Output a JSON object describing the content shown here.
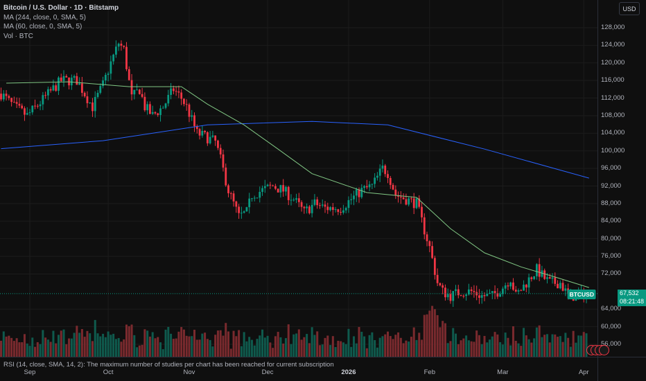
{
  "legend": {
    "title": "Bitcoin / U.S. Dollar · 1D · Bitstamp",
    "ma1": "MA (244, close, 0, SMA, 5)",
    "ma2": "MA (60, close, 0, SMA, 5)",
    "vol": "Vol · BTC"
  },
  "currency_button": "USD",
  "symbol_tag": "BTCUSD",
  "last_price": "67,532",
  "countdown": "08:21:48",
  "rsi_message": "RSI (14, close, SMA, 14, 2): The maximum number of studies per chart has been reached for current subscription",
  "colors": {
    "up": "#089981",
    "down": "#f23645",
    "ma244": "#2962ff",
    "ma60": "#81c784",
    "bg": "#0f0f0f"
  },
  "chart_data": {
    "type": "candlestick",
    "title": "Bitcoin / U.S. Dollar · 1D · Bitstamp",
    "price_ticks": [
      "128,000",
      "124,000",
      "120,000",
      "116,000",
      "112,000",
      "108,000",
      "104,000",
      "100,000",
      "96,000",
      "92,000",
      "88,000",
      "84,000",
      "80,000",
      "76,000",
      "72,000",
      "64,000",
      "60,000",
      "56,000"
    ],
    "price_tick_values": [
      128000,
      124000,
      120000,
      116000,
      112000,
      108000,
      104000,
      100000,
      96000,
      92000,
      88000,
      84000,
      80000,
      76000,
      72000,
      64000,
      60000,
      56000
    ],
    "date_ticks": [
      {
        "label": "Sep",
        "day": 0,
        "bold": false
      },
      {
        "label": "Oct",
        "day": 30,
        "bold": false
      },
      {
        "label": "Nov",
        "day": 61,
        "bold": false
      },
      {
        "label": "Dec",
        "day": 91,
        "bold": false
      },
      {
        "label": "2026",
        "day": 122,
        "bold": true
      },
      {
        "label": "Feb",
        "day": 153,
        "bold": false
      },
      {
        "label": "Mar",
        "day": 181,
        "bold": false
      },
      {
        "label": "Apr",
        "day": 212,
        "bold": false
      }
    ],
    "close_keypoints_day_price": [
      [
        -11,
        113000
      ],
      [
        -6,
        110000
      ],
      [
        -1,
        108000
      ],
      [
        4,
        111000
      ],
      [
        12,
        116000
      ],
      [
        18,
        116000
      ],
      [
        22,
        112000
      ],
      [
        24,
        110000
      ],
      [
        28,
        115000
      ],
      [
        31,
        120000
      ],
      [
        34,
        124500
      ],
      [
        36,
        123000
      ],
      [
        39,
        112000
      ],
      [
        42,
        114000
      ],
      [
        44,
        110000
      ],
      [
        47,
        108000
      ],
      [
        51,
        110000
      ],
      [
        55,
        114000
      ],
      [
        58,
        112000
      ],
      [
        60,
        110000
      ],
      [
        64,
        104000
      ],
      [
        68,
        103000
      ],
      [
        71,
        102000
      ],
      [
        73,
        98000
      ],
      [
        76,
        91000
      ],
      [
        80,
        85000
      ],
      [
        83,
        86000
      ],
      [
        85,
        90000
      ],
      [
        89,
        91000
      ],
      [
        93,
        92000
      ],
      [
        97,
        91000
      ],
      [
        101,
        89000
      ],
      [
        105,
        86000
      ],
      [
        109,
        88000
      ],
      [
        113,
        87000
      ],
      [
        119,
        87000
      ],
      [
        123,
        89000
      ],
      [
        127,
        91000
      ],
      [
        131,
        92000
      ],
      [
        135,
        96000
      ],
      [
        137,
        95000
      ],
      [
        140,
        90000
      ],
      [
        144,
        89000
      ],
      [
        148,
        88000
      ],
      [
        150,
        84000
      ],
      [
        153,
        78000
      ],
      [
        156,
        70000
      ],
      [
        158,
        68000
      ],
      [
        161,
        67000
      ],
      [
        165,
        68000
      ],
      [
        169,
        68000
      ],
      [
        173,
        67000
      ],
      [
        177,
        67000
      ],
      [
        181,
        69000
      ],
      [
        184,
        71000
      ],
      [
        186,
        67000
      ],
      [
        190,
        70000
      ],
      [
        194,
        73000
      ],
      [
        197,
        71000
      ],
      [
        199,
        70000
      ],
      [
        203,
        70000
      ],
      [
        206,
        67000
      ],
      [
        210,
        67000
      ],
      [
        213,
        67532
      ]
    ],
    "ma244_day_price": [
      [
        -11,
        100500
      ],
      [
        28,
        102300
      ],
      [
        68,
        105900
      ],
      [
        108,
        106700
      ],
      [
        137,
        105900
      ],
      [
        174,
        100400
      ],
      [
        214,
        93800
      ]
    ],
    "ma60_day_price": [
      [
        -9,
        115400
      ],
      [
        15,
        115700
      ],
      [
        38,
        114600
      ],
      [
        58,
        114600
      ],
      [
        68,
        110600
      ],
      [
        82,
        105900
      ],
      [
        95,
        100400
      ],
      [
        108,
        94800
      ],
      [
        129,
        90500
      ],
      [
        148,
        89400
      ],
      [
        161,
        82300
      ],
      [
        174,
        76800
      ],
      [
        188,
        73600
      ],
      [
        201,
        71300
      ],
      [
        214,
        68900
      ]
    ],
    "last_price": 67532
  }
}
